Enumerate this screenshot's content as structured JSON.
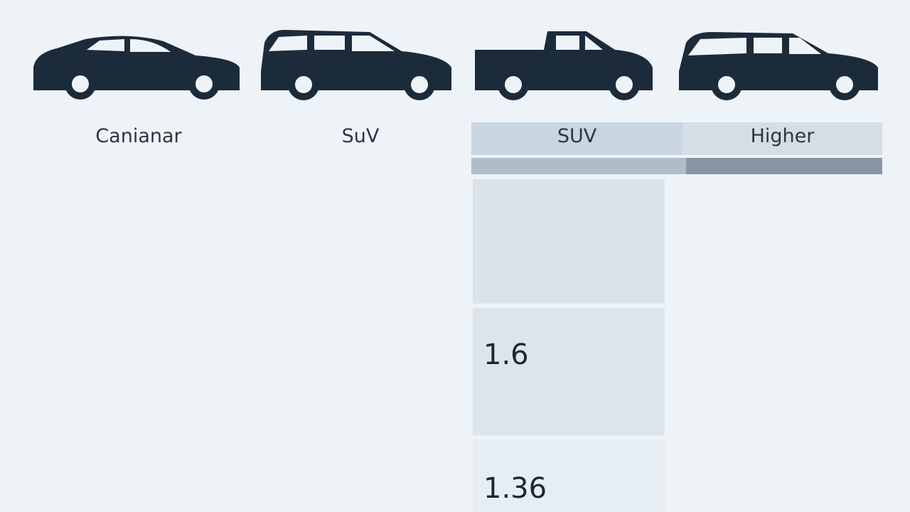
{
  "labels": [
    "Canianar",
    "SuV"
  ],
  "table": {
    "headers": [
      "SUV",
      "Higher"
    ],
    "rows": [
      [
        "1.6"
      ],
      [
        "1.36"
      ]
    ]
  }
}
